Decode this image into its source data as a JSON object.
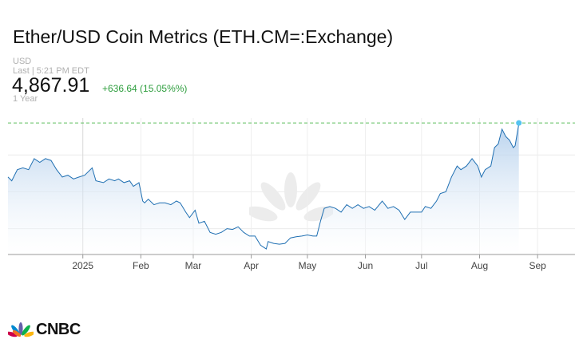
{
  "header": {
    "title": "Ether/USD Coin Metrics (ETH.CM=:Exchange)",
    "currency": "USD",
    "last_updated": "Last | 5:21 PM EDT",
    "price": "4,867.91",
    "change": "+636.64 (15.05%%)",
    "range": "1 Year"
  },
  "brand": {
    "name": "CNBC"
  },
  "colors": {
    "line": "#1f6fb2",
    "area_top": "#aac9ea",
    "area_bottom": "#ffffff",
    "reference_line": "#5cbf5c",
    "marker": "#55c3f0",
    "positive": "#2e9e3e"
  },
  "chart_data": {
    "type": "area",
    "x_labels": [
      "2025",
      "Feb",
      "Mar",
      "Apr",
      "May",
      "Jun",
      "Jul",
      "Aug",
      "Sep"
    ],
    "x_domain": [
      "2024-11-22",
      "2025-09-21"
    ],
    "ylim": [
      1300,
      5000
    ],
    "reference_value": 4867.91,
    "grid": true,
    "series": [
      {
        "points": [
          [
            "2024-11-22",
            3400
          ],
          [
            "2024-11-24",
            3300
          ],
          [
            "2024-11-27",
            3600
          ],
          [
            "2024-11-30",
            3650
          ],
          [
            "2024-12-03",
            3600
          ],
          [
            "2024-12-06",
            3900
          ],
          [
            "2024-12-09",
            3800
          ],
          [
            "2024-12-12",
            3900
          ],
          [
            "2024-12-15",
            3850
          ],
          [
            "2024-12-18",
            3600
          ],
          [
            "2024-12-21",
            3400
          ],
          [
            "2024-12-24",
            3450
          ],
          [
            "2024-12-27",
            3350
          ],
          [
            "2024-12-30",
            3400
          ],
          [
            "2025-01-02",
            3450
          ],
          [
            "2025-01-06",
            3650
          ],
          [
            "2025-01-08",
            3300
          ],
          [
            "2025-01-12",
            3250
          ],
          [
            "2025-01-15",
            3350
          ],
          [
            "2025-01-18",
            3300
          ],
          [
            "2025-01-20",
            3350
          ],
          [
            "2025-01-23",
            3250
          ],
          [
            "2025-01-26",
            3300
          ],
          [
            "2025-01-28",
            3150
          ],
          [
            "2025-01-31",
            3250
          ],
          [
            "2025-02-02",
            2750
          ],
          [
            "2025-02-03",
            2700
          ],
          [
            "2025-02-05",
            2800
          ],
          [
            "2025-02-08",
            2650
          ],
          [
            "2025-02-11",
            2700
          ],
          [
            "2025-02-14",
            2700
          ],
          [
            "2025-02-17",
            2650
          ],
          [
            "2025-02-20",
            2750
          ],
          [
            "2025-02-22",
            2700
          ],
          [
            "2025-02-25",
            2450
          ],
          [
            "2025-02-27",
            2300
          ],
          [
            "2025-03-02",
            2500
          ],
          [
            "2025-03-04",
            2150
          ],
          [
            "2025-03-07",
            2200
          ],
          [
            "2025-03-10",
            1900
          ],
          [
            "2025-03-13",
            1850
          ],
          [
            "2025-03-16",
            1900
          ],
          [
            "2025-03-19",
            2000
          ],
          [
            "2025-03-22",
            1980
          ],
          [
            "2025-03-25",
            2050
          ],
          [
            "2025-03-28",
            1900
          ],
          [
            "2025-03-31",
            1800
          ],
          [
            "2025-04-03",
            1800
          ],
          [
            "2025-04-06",
            1550
          ],
          [
            "2025-04-09",
            1450
          ],
          [
            "2025-04-10",
            1650
          ],
          [
            "2025-04-13",
            1600
          ],
          [
            "2025-04-16",
            1580
          ],
          [
            "2025-04-19",
            1600
          ],
          [
            "2025-04-22",
            1750
          ],
          [
            "2025-04-25",
            1780
          ],
          [
            "2025-04-28",
            1800
          ],
          [
            "2025-05-01",
            1830
          ],
          [
            "2025-05-04",
            1800
          ],
          [
            "2025-05-06",
            1800
          ],
          [
            "2025-05-08",
            2200
          ],
          [
            "2025-05-10",
            2550
          ],
          [
            "2025-05-13",
            2600
          ],
          [
            "2025-05-16",
            2550
          ],
          [
            "2025-05-19",
            2450
          ],
          [
            "2025-05-22",
            2650
          ],
          [
            "2025-05-25",
            2550
          ],
          [
            "2025-05-28",
            2650
          ],
          [
            "2025-05-31",
            2550
          ],
          [
            "2025-06-03",
            2600
          ],
          [
            "2025-06-06",
            2500
          ],
          [
            "2025-06-10",
            2750
          ],
          [
            "2025-06-13",
            2550
          ],
          [
            "2025-06-16",
            2600
          ],
          [
            "2025-06-19",
            2500
          ],
          [
            "2025-06-22",
            2250
          ],
          [
            "2025-06-25",
            2450
          ],
          [
            "2025-06-28",
            2450
          ],
          [
            "2025-07-01",
            2450
          ],
          [
            "2025-07-03",
            2600
          ],
          [
            "2025-07-06",
            2550
          ],
          [
            "2025-07-09",
            2750
          ],
          [
            "2025-07-11",
            2950
          ],
          [
            "2025-07-14",
            3000
          ],
          [
            "2025-07-17",
            3400
          ],
          [
            "2025-07-20",
            3700
          ],
          [
            "2025-07-22",
            3600
          ],
          [
            "2025-07-25",
            3700
          ],
          [
            "2025-07-28",
            3900
          ],
          [
            "2025-07-31",
            3700
          ],
          [
            "2025-08-02",
            3400
          ],
          [
            "2025-08-04",
            3600
          ],
          [
            "2025-08-07",
            3700
          ],
          [
            "2025-08-09",
            4200
          ],
          [
            "2025-08-11",
            4300
          ],
          [
            "2025-08-13",
            4700
          ],
          [
            "2025-08-15",
            4500
          ],
          [
            "2025-08-17",
            4400
          ],
          [
            "2025-08-19",
            4200
          ],
          [
            "2025-08-20",
            4250
          ],
          [
            "2025-08-22",
            4850
          ]
        ]
      }
    ]
  }
}
